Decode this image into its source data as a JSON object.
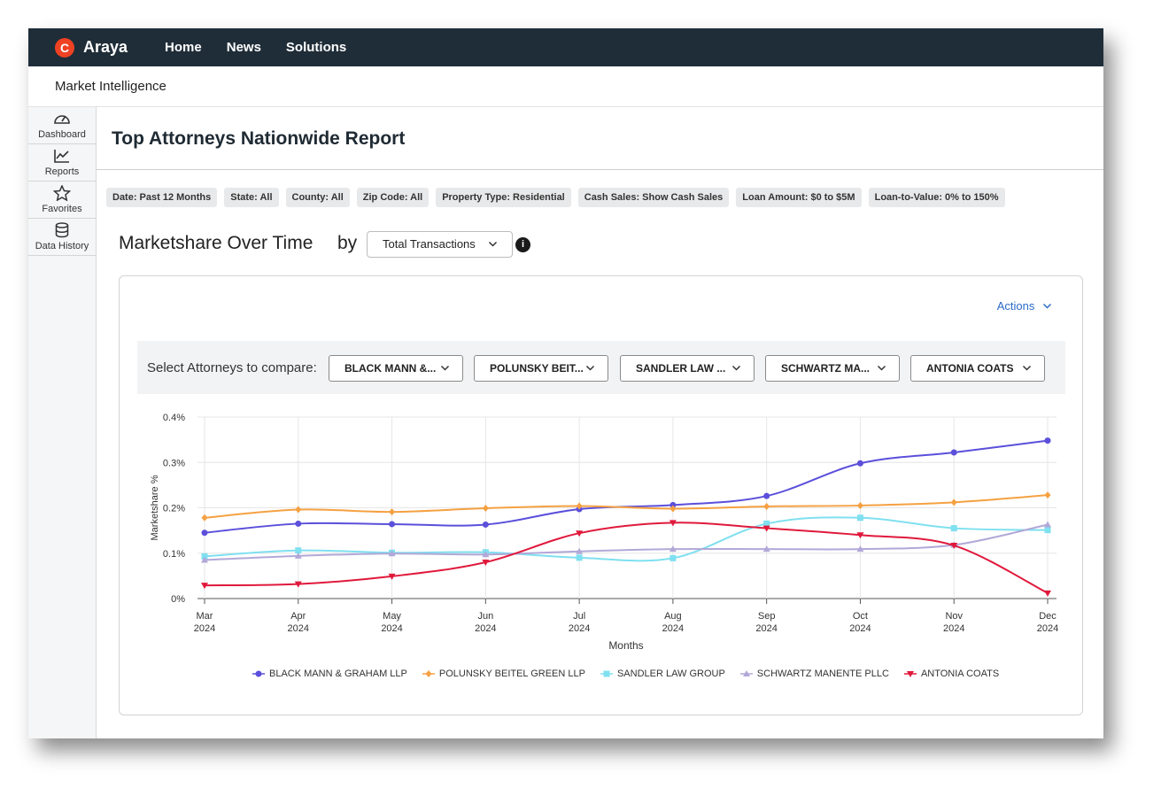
{
  "app": {
    "logo_text": "Araya",
    "logo_glyph": "C"
  },
  "nav": {
    "items": [
      "Home",
      "News",
      "Solutions"
    ]
  },
  "subheader": {
    "title": "Market Intelligence"
  },
  "sidebar": {
    "items": [
      {
        "label": "Dashboard",
        "icon": "gauge-icon"
      },
      {
        "label": "Reports",
        "icon": "line-chart-icon"
      },
      {
        "label": "Favorites",
        "icon": "star-icon"
      },
      {
        "label": "Data History",
        "icon": "database-icon"
      }
    ]
  },
  "report": {
    "title": "Top Attorneys Nationwide Report"
  },
  "filters": [
    "Date: Past 12 Months",
    "State: All",
    "County: All",
    "Zip Code: All",
    "Property Type: Residential",
    "Cash Sales: Show Cash Sales",
    "Loan Amount: $0 to $5M",
    "Loan-to-Value: 0% to 150%"
  ],
  "marketshare": {
    "heading": "Marketshare Over Time",
    "by": "by",
    "metric": "Total Transactions",
    "info_glyph": "i"
  },
  "panel": {
    "actions_label": "Actions"
  },
  "compare": {
    "label": "Select Attorneys to compare:",
    "selects": [
      "BLACK MANN &...",
      "POLUNSKY BEIT...",
      "SANDLER LAW ...",
      "SCHWARTZ MA...",
      "ANTONIA COATS"
    ]
  },
  "chart_data": {
    "type": "line",
    "xlabel": "Months",
    "ylabel": "Marketshare %",
    "x": [
      {
        "month": "Mar",
        "year": "2024"
      },
      {
        "month": "Apr",
        "year": "2024"
      },
      {
        "month": "May",
        "year": "2024"
      },
      {
        "month": "Jun",
        "year": "2024"
      },
      {
        "month": "Jul",
        "year": "2024"
      },
      {
        "month": "Aug",
        "year": "2024"
      },
      {
        "month": "Sep",
        "year": "2024"
      },
      {
        "month": "Oct",
        "year": "2024"
      },
      {
        "month": "Nov",
        "year": "2024"
      },
      {
        "month": "Dec",
        "year": "2024"
      }
    ],
    "ylim": [
      0,
      0.4
    ],
    "yticks": [
      0,
      0.1,
      0.2,
      0.3,
      0.4
    ],
    "ytick_labels": [
      "0%",
      "0.1%",
      "0.2%",
      "0.3%",
      "0.4%"
    ],
    "grid": true,
    "legend_position": "bottom",
    "series": [
      {
        "name": "BLACK MANN & GRAHAM LLP",
        "color": "#5b4fdb",
        "marker": "circle",
        "values": [
          0.145,
          0.165,
          0.164,
          0.163,
          0.197,
          0.206,
          0.226,
          0.298,
          0.322,
          0.348
        ]
      },
      {
        "name": "POLUNSKY BEITEL GREEN LLP",
        "color": "#f5a142",
        "marker": "diamond",
        "values": [
          0.178,
          0.196,
          0.191,
          0.199,
          0.204,
          0.198,
          0.203,
          0.205,
          0.212,
          0.228
        ]
      },
      {
        "name": "SANDLER LAW GROUP",
        "color": "#7fe0f0",
        "marker": "square",
        "values": [
          0.093,
          0.106,
          0.101,
          0.102,
          0.09,
          0.089,
          0.165,
          0.178,
          0.155,
          0.151
        ]
      },
      {
        "name": "SCHWARTZ MANENTE PLLC",
        "color": "#b2a8d8",
        "marker": "triangle",
        "values": [
          0.085,
          0.094,
          0.099,
          0.097,
          0.104,
          0.109,
          0.109,
          0.109,
          0.118,
          0.163
        ]
      },
      {
        "name": "ANTONIA COATS",
        "color": "#e0193c",
        "marker": "triangle-down",
        "values": [
          0.029,
          0.032,
          0.049,
          0.08,
          0.144,
          0.167,
          0.155,
          0.14,
          0.117,
          0.012
        ]
      }
    ]
  }
}
